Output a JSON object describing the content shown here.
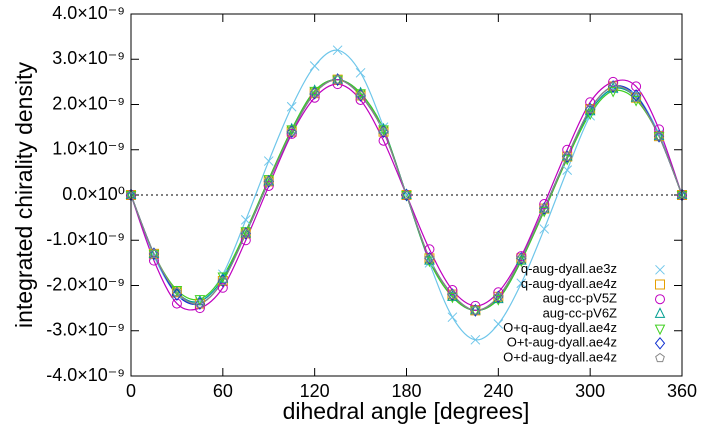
{
  "chart_data": {
    "type": "line",
    "xlabel": "dihedral angle [degrees]",
    "ylabel": "integrated chirality density",
    "x": [
      0,
      15,
      30,
      45,
      60,
      75,
      90,
      105,
      120,
      135,
      150,
      165,
      180,
      195,
      210,
      225,
      240,
      255,
      270,
      285,
      300,
      315,
      330,
      345,
      360
    ],
    "xlim": [
      0,
      360
    ],
    "xticks": [
      0,
      60,
      120,
      180,
      240,
      300,
      360
    ],
    "ylim": [
      -4e-09,
      4e-09
    ],
    "yticks": [
      {
        "value": -4e-09,
        "label": "-4.0×10⁻⁹"
      },
      {
        "value": -3e-09,
        "label": "-3.0×10⁻⁹"
      },
      {
        "value": -2e-09,
        "label": "-2.0×10⁻⁹"
      },
      {
        "value": -1e-09,
        "label": "-1.0×10⁻⁹"
      },
      {
        "value": 0,
        "label": "0.0×10⁰"
      },
      {
        "value": 1e-09,
        "label": "1.0×10⁻⁹"
      },
      {
        "value": 2e-09,
        "label": "2.0×10⁻⁹"
      },
      {
        "value": 3e-09,
        "label": "3.0×10⁻⁹"
      },
      {
        "value": 4e-09,
        "label": "4.0×10⁻⁹"
      }
    ],
    "zero_line": true,
    "legend": "bottom right",
    "series": [
      {
        "name": "q-aug-dyall.ae3z",
        "color": "#6ec6ea",
        "marker": "x",
        "values": [
          0,
          -1.35e-09,
          -2.2e-09,
          -2.35e-09,
          -1.75e-09,
          -5.5e-10,
          7.5e-10,
          1.95e-09,
          2.85e-09,
          3.2e-09,
          2.7e-09,
          1.5e-09,
          0,
          -1.5e-09,
          -2.7e-09,
          -3.2e-09,
          -2.85e-09,
          -1.95e-09,
          -7.5e-10,
          5.5e-10,
          1.75e-09,
          2.35e-09,
          2.2e-09,
          1.35e-09,
          0
        ]
      },
      {
        "name": "q-aug-dyall.ae4z",
        "color": "#e69f00",
        "marker": "square",
        "values": [
          0,
          -1.3e-09,
          -2.15e-09,
          -2.4e-09,
          -1.9e-09,
          -8.5e-10,
          3e-10,
          1.4e-09,
          2.25e-09,
          2.55e-09,
          2.2e-09,
          1.4e-09,
          0,
          -1.4e-09,
          -2.2e-09,
          -2.55e-09,
          -2.25e-09,
          -1.4e-09,
          -3e-10,
          8.5e-10,
          1.9e-09,
          2.4e-09,
          2.15e-09,
          1.3e-09,
          0
        ]
      },
      {
        "name": "aug-cc-pV5Z",
        "color": "#c000c0",
        "marker": "circle",
        "values": [
          0,
          -1.45e-09,
          -2.4e-09,
          -2.5e-09,
          -2.05e-09,
          -1e-09,
          2e-10,
          1.35e-09,
          2.15e-09,
          2.45e-09,
          2.1e-09,
          1.2e-09,
          0,
          -1.2e-09,
          -2.1e-09,
          -2.45e-09,
          -2.15e-09,
          -1.35e-09,
          -2e-10,
          1e-09,
          2.05e-09,
          2.5e-09,
          2.4e-09,
          1.45e-09,
          0
        ]
      },
      {
        "name": "aug-cc-pV6Z",
        "color": "#009e90",
        "marker": "triangle",
        "values": [
          0,
          -1.3e-09,
          -2.15e-09,
          -2.35e-09,
          -1.85e-09,
          -8.5e-10,
          3e-10,
          1.45e-09,
          2.3e-09,
          2.55e-09,
          2.25e-09,
          1.45e-09,
          0,
          -1.45e-09,
          -2.25e-09,
          -2.55e-09,
          -2.3e-09,
          -1.45e-09,
          -3e-10,
          8.5e-10,
          1.85e-09,
          2.35e-09,
          2.15e-09,
          1.3e-09,
          0
        ]
      },
      {
        "name": "O+q-aug-dyall.ae4z",
        "color": "#40d020",
        "marker": "down-triangle",
        "values": [
          0,
          -1.3e-09,
          -2.1e-09,
          -2.3e-09,
          -1.8e-09,
          -8e-10,
          3.5e-10,
          1.45e-09,
          2.3e-09,
          2.55e-09,
          2.25e-09,
          1.45e-09,
          0,
          -1.45e-09,
          -2.25e-09,
          -2.55e-09,
          -2.3e-09,
          -1.45e-09,
          -3.5e-10,
          8e-10,
          1.8e-09,
          2.3e-09,
          2.1e-09,
          1.3e-09,
          0
        ]
      },
      {
        "name": "O+t-aug-dyall.ae4z",
        "color": "#1030d0",
        "marker": "diamond",
        "values": [
          0,
          -1.3e-09,
          -2.2e-09,
          -2.4e-09,
          -1.9e-09,
          -8.5e-10,
          3e-10,
          1.4e-09,
          2.25e-09,
          2.55e-09,
          2.2e-09,
          1.4e-09,
          0,
          -1.4e-09,
          -2.2e-09,
          -2.55e-09,
          -2.25e-09,
          -1.4e-09,
          -3e-10,
          8.5e-10,
          1.9e-09,
          2.4e-09,
          2.2e-09,
          1.3e-09,
          0
        ]
      },
      {
        "name": "O+d-aug-dyall.ae4z",
        "color": "#888888",
        "marker": "pentagon",
        "values": [
          0,
          -1.3e-09,
          -2.15e-09,
          -2.4e-09,
          -1.9e-09,
          -8.5e-10,
          3e-10,
          1.4e-09,
          2.25e-09,
          2.55e-09,
          2.2e-09,
          1.4e-09,
          0,
          -1.4e-09,
          -2.2e-09,
          -2.55e-09,
          -2.25e-09,
          -1.4e-09,
          -3e-10,
          8.5e-10,
          1.9e-09,
          2.4e-09,
          2.15e-09,
          1.3e-09,
          0
        ]
      }
    ]
  }
}
